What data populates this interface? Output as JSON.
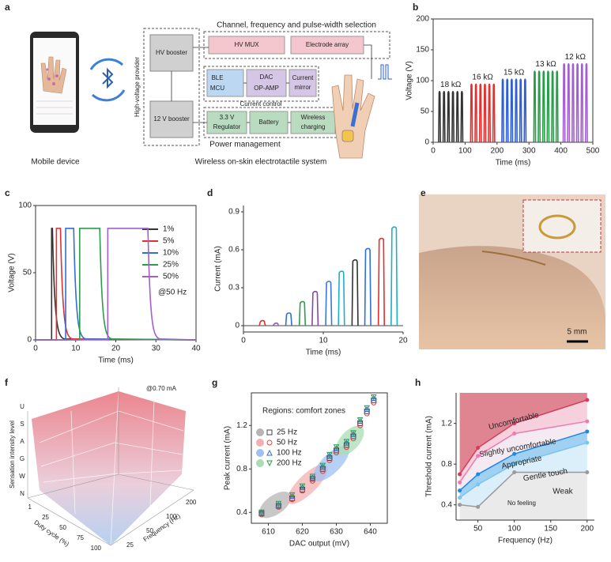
{
  "a": {
    "label": "a",
    "phone_caption": "Mobile device",
    "system_caption": "Wireless on-skin electrotactile system",
    "top_title": "Channel, frequency and pulse-width selection",
    "hv_booster": "HV booster",
    "v12_booster": "12 V booster",
    "hv_provider": "High-voltage provider",
    "hv_mux": "HV MUX",
    "electrode_array": "Electrode array",
    "ble": "BLE",
    "mcu": "MCU",
    "dac": "DAC",
    "op_amp": "OP-AMP",
    "current": "Current",
    "mirror": "mirror",
    "current_control": "Current control",
    "v33": "3.3 V",
    "regulator": "Regulator",
    "battery": "Battery",
    "wireless": "Wireless",
    "charging": "charging",
    "power_management": "Power management"
  },
  "b": {
    "label": "b",
    "type": "pulse",
    "xlabel": "Time (ms)",
    "ylabel": "Voltage (V)",
    "xlim": [
      0,
      500
    ],
    "xticks": [
      0,
      100,
      200,
      300,
      400,
      500
    ],
    "ylim": [
      0,
      200
    ],
    "yticks": [
      0,
      50,
      100,
      150,
      200
    ],
    "series": [
      {
        "name": "18 kΩ",
        "color": "#333333",
        "x": [
          20,
          34,
          48,
          62,
          76,
          90
        ],
        "values": [
          83,
          83,
          83,
          83,
          83,
          83
        ]
      },
      {
        "name": "16 kΩ",
        "color": "#e53030",
        "x": [
          120,
          134,
          148,
          162,
          176,
          190
        ],
        "values": [
          95,
          95,
          95,
          95,
          95,
          95
        ]
      },
      {
        "name": "15 kΩ",
        "color": "#2f5fd8",
        "x": [
          218,
          232,
          246,
          260,
          274,
          288
        ],
        "values": [
          103,
          103,
          103,
          103,
          103,
          103
        ]
      },
      {
        "name": "13 kΩ",
        "color": "#2a9d4a",
        "x": [
          318,
          332,
          346,
          360,
          374,
          388
        ],
        "values": [
          116,
          116,
          116,
          116,
          116,
          116
        ]
      },
      {
        "name": "12 kΩ",
        "color": "#a35fd0",
        "x": [
          410,
          424,
          438,
          452,
          466,
          480
        ],
        "values": [
          128,
          128,
          128,
          128,
          128,
          128
        ]
      }
    ]
  },
  "c": {
    "label": "c",
    "type": "pulse-width",
    "xlabel": "Time (ms)",
    "ylabel": "Voltage (V)",
    "annotation": "@50 Hz",
    "xlim": [
      0,
      40
    ],
    "xticks": [
      0,
      10,
      20,
      30,
      40
    ],
    "ylim": [
      0,
      100
    ],
    "yticks": [
      0,
      50,
      100
    ],
    "series": [
      {
        "name": "1%",
        "color": "#333333",
        "x": [
          4,
          4.2
        ],
        "values": [
          83,
          83
        ]
      },
      {
        "name": "5%",
        "color": "#e53030",
        "x": [
          5.2,
          6.2
        ],
        "values": [
          83,
          83
        ]
      },
      {
        "name": "10%",
        "color": "#2f6fd8",
        "x": [
          7.5,
          9.5
        ],
        "values": [
          83,
          83
        ]
      },
      {
        "name": "25%",
        "color": "#2a9d4a",
        "x": [
          11,
          16
        ],
        "values": [
          83,
          83
        ]
      },
      {
        "name": "50%",
        "color": "#a35fd0",
        "x": [
          18,
          28
        ],
        "values": [
          83,
          83
        ]
      }
    ]
  },
  "d": {
    "label": "d",
    "type": "current-pulses",
    "xlabel": "Time (ms)",
    "ylabel": "Current (mA)",
    "xlim": [
      0,
      20
    ],
    "xticks": [
      0,
      10,
      20
    ],
    "ylim": [
      -0.05,
      0.95
    ],
    "yticks": [
      0,
      0.3,
      0.6,
      0.9
    ],
    "pulses": [
      {
        "x": 2,
        "value": 0.04,
        "color": "#e03030"
      },
      {
        "x": 3.7,
        "value": 0.02,
        "color": "#9b59b6"
      },
      {
        "x": 5.3,
        "value": 0.1,
        "color": "#2f6fd8"
      },
      {
        "x": 7,
        "value": 0.19,
        "color": "#2aa04a"
      },
      {
        "x": 8.6,
        "value": 0.27,
        "color": "#8e44ad"
      },
      {
        "x": 10.3,
        "value": 0.35,
        "color": "#3a78d8"
      },
      {
        "x": 11.9,
        "value": 0.43,
        "color": "#1ab0c8"
      },
      {
        "x": 13.6,
        "value": 0.52,
        "color": "#333333"
      },
      {
        "x": 15.2,
        "value": 0.61,
        "color": "#2f6fd8"
      },
      {
        "x": 16.9,
        "value": 0.69,
        "color": "#e03030"
      },
      {
        "x": 18.5,
        "value": 0.78,
        "color": "#1ab0c8"
      }
    ]
  },
  "e": {
    "label": "e",
    "scale_bar": "5 mm"
  },
  "f": {
    "label": "f",
    "annotation": "@0.70 mA",
    "zlabel": "Sensation intensity level",
    "levels": [
      "U",
      "S",
      "A",
      "G",
      "W",
      "N"
    ],
    "duty_label": "Duty cycle (%)",
    "duty_ticks": [
      "1",
      "25",
      "50",
      "75",
      "100"
    ],
    "freq_label": "Frequency (Hz)",
    "freq_ticks": [
      "25",
      "50",
      "100",
      "200"
    ]
  },
  "g": {
    "label": "g",
    "type": "scatter",
    "xlabel": "DAC output (mV)",
    "ylabel": "Peak current (mA)",
    "legend_title": "Regions: comfort zones",
    "xlim": [
      605,
      645
    ],
    "xticks": [
      610,
      620,
      630,
      640
    ],
    "ylim": [
      0.3,
      1.5
    ],
    "yticks": [
      0.4,
      0.8,
      1.2
    ],
    "x": [
      608,
      613,
      617,
      620,
      623,
      626,
      628,
      630,
      633,
      635,
      637,
      639,
      641
    ],
    "series": [
      {
        "name": "25 Hz",
        "color": "#444444",
        "marker": "square",
        "values": [
          0.39,
          0.46,
          0.53,
          0.61,
          0.71,
          0.8,
          0.9,
          0.97,
          1.02,
          1.1,
          1.22,
          1.33,
          1.43
        ]
      },
      {
        "name": "50 Hz",
        "color": "#e04040",
        "marker": "circle",
        "values": [
          0.38,
          0.45,
          0.52,
          0.6,
          0.69,
          0.78,
          0.88,
          0.95,
          1.0,
          1.08,
          1.2,
          1.31,
          1.41
        ]
      },
      {
        "name": "100 Hz",
        "color": "#2f6fd8",
        "marker": "triangle",
        "values": [
          0.4,
          0.47,
          0.55,
          0.63,
          0.72,
          0.82,
          0.92,
          0.99,
          1.04,
          1.12,
          1.24,
          1.35,
          1.45
        ]
      },
      {
        "name": "200 Hz",
        "color": "#2a9d4a",
        "marker": "triangle-down",
        "values": [
          0.4,
          0.48,
          0.56,
          0.64,
          0.73,
          0.83,
          0.93,
          1.0,
          1.05,
          1.13,
          1.25,
          1.36,
          1.46
        ]
      }
    ]
  },
  "h": {
    "label": "h",
    "type": "line",
    "xlabel": "Frequency (Hz)",
    "ylabel": "Threshold current (mA)",
    "xlim": [
      20,
      210
    ],
    "xticks": [
      50,
      100,
      150,
      200
    ],
    "ylim": [
      0.25,
      1.5
    ],
    "yticks": [
      0.4,
      0.8,
      1.2
    ],
    "x": [
      25,
      50,
      100,
      200
    ],
    "series": [
      {
        "name": "Uncomfortable",
        "color": "#d83a5a",
        "values": [
          0.7,
          0.96,
          1.2,
          1.43
        ]
      },
      {
        "name": "Slightly uncomfortable",
        "color": "#f07ab0",
        "values": [
          0.62,
          0.88,
          1.1,
          1.22
        ]
      },
      {
        "name": "Appropriate",
        "color": "#1e88e5",
        "values": [
          0.54,
          0.7,
          0.9,
          1.12
        ]
      },
      {
        "name": "Gentle touch",
        "color": "#7cc4ee",
        "values": [
          0.47,
          0.6,
          0.8,
          1.01
        ]
      },
      {
        "name": "Weak",
        "color": "#9a9a9a",
        "values": [
          0.4,
          0.38,
          0.72,
          0.72
        ]
      }
    ],
    "no_feeling": "No feeling"
  }
}
